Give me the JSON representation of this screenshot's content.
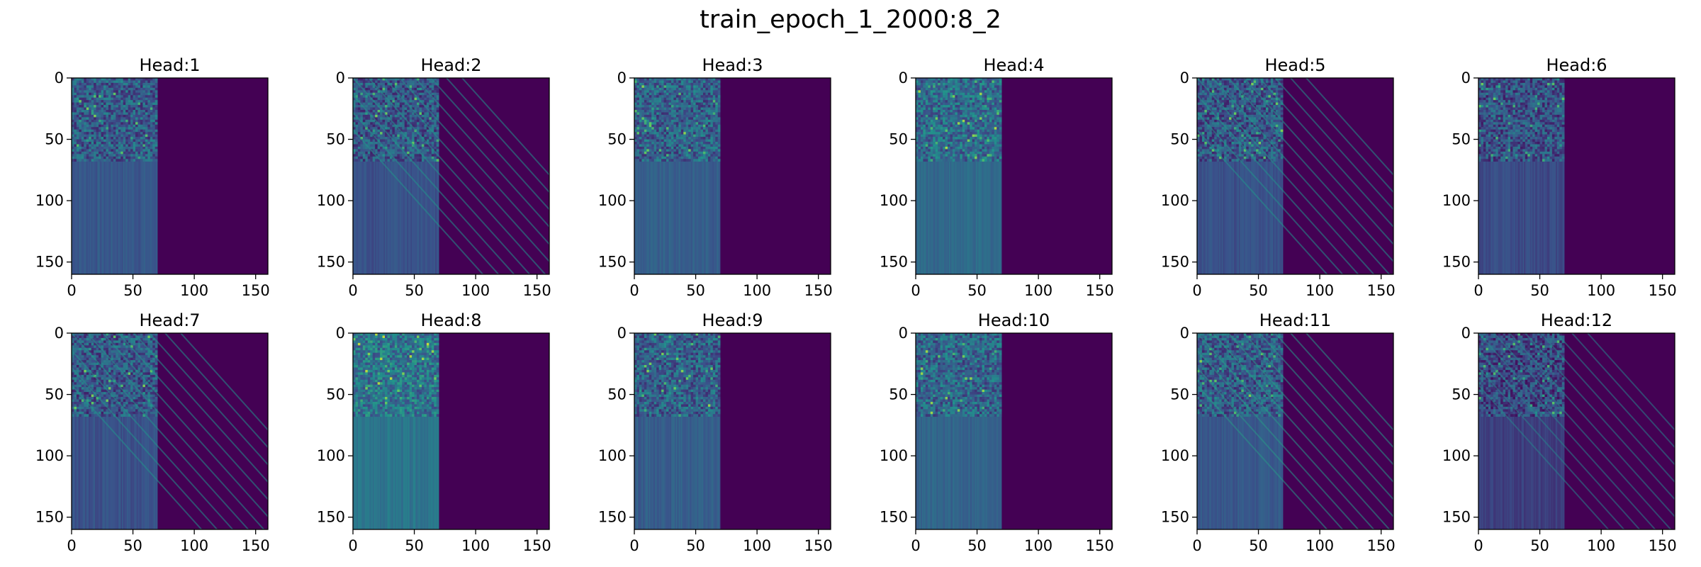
{
  "figure_title": "train_epoch_1_2000:8_2",
  "chart_data": [
    {
      "type": "heatmap",
      "title": "Head:1",
      "xlim": [
        0,
        160
      ],
      "ylim": [
        160,
        0
      ],
      "xticks": [
        0,
        50,
        100,
        150
      ],
      "yticks": [
        0,
        50,
        100,
        150
      ],
      "xticklabels": [
        "0",
        "50",
        "100",
        "150"
      ],
      "yticklabels": [
        "0",
        "50",
        "100",
        "150"
      ],
      "active_columns": [
        0,
        70
      ],
      "top_block_rows": [
        0,
        68
      ],
      "brightness": 0.35,
      "diagonal_stripes": false
    },
    {
      "type": "heatmap",
      "title": "Head:2",
      "xlim": [
        0,
        160
      ],
      "ylim": [
        160,
        0
      ],
      "xticks": [
        0,
        50,
        100,
        150
      ],
      "yticks": [
        0,
        50,
        100,
        150
      ],
      "xticklabels": [
        "0",
        "50",
        "100",
        "150"
      ],
      "yticklabels": [
        "0",
        "50",
        "100",
        "150"
      ],
      "active_columns": [
        0,
        70
      ],
      "top_block_rows": [
        0,
        68
      ],
      "brightness": 0.3,
      "diagonal_stripes": true
    },
    {
      "type": "heatmap",
      "title": "Head:3",
      "xlim": [
        0,
        160
      ],
      "ylim": [
        160,
        0
      ],
      "xticks": [
        0,
        50,
        100,
        150
      ],
      "yticks": [
        0,
        50,
        100,
        150
      ],
      "xticklabels": [
        "0",
        "50",
        "100",
        "150"
      ],
      "yticklabels": [
        "0",
        "50",
        "100",
        "150"
      ],
      "active_columns": [
        0,
        70
      ],
      "top_block_rows": [
        0,
        68
      ],
      "brightness": 0.4,
      "diagonal_stripes": false
    },
    {
      "type": "heatmap",
      "title": "Head:4",
      "xlim": [
        0,
        160
      ],
      "ylim": [
        160,
        0
      ],
      "xticks": [
        0,
        50,
        100,
        150
      ],
      "yticks": [
        0,
        50,
        100,
        150
      ],
      "xticklabels": [
        "0",
        "50",
        "100",
        "150"
      ],
      "yticklabels": [
        "0",
        "50",
        "100",
        "150"
      ],
      "active_columns": [
        0,
        70
      ],
      "top_block_rows": [
        0,
        68
      ],
      "brightness": 0.5,
      "diagonal_stripes": false
    },
    {
      "type": "heatmap",
      "title": "Head:5",
      "xlim": [
        0,
        160
      ],
      "ylim": [
        160,
        0
      ],
      "xticks": [
        0,
        50,
        100,
        150
      ],
      "yticks": [
        0,
        50,
        100,
        150
      ],
      "xticklabels": [
        "0",
        "50",
        "100",
        "150"
      ],
      "yticklabels": [
        "0",
        "50",
        "100",
        "150"
      ],
      "active_columns": [
        0,
        70
      ],
      "top_block_rows": [
        0,
        68
      ],
      "brightness": 0.3,
      "diagonal_stripes": true
    },
    {
      "type": "heatmap",
      "title": "Head:6",
      "xlim": [
        0,
        160
      ],
      "ylim": [
        160,
        0
      ],
      "xticks": [
        0,
        50,
        100,
        150
      ],
      "yticks": [
        0,
        50,
        100,
        150
      ],
      "xticklabels": [
        "0",
        "50",
        "100",
        "150"
      ],
      "yticklabels": [
        "0",
        "50",
        "100",
        "150"
      ],
      "active_columns": [
        0,
        70
      ],
      "top_block_rows": [
        0,
        68
      ],
      "brightness": 0.25,
      "diagonal_stripes": false
    },
    {
      "type": "heatmap",
      "title": "Head:7",
      "xlim": [
        0,
        160
      ],
      "ylim": [
        160,
        0
      ],
      "xticks": [
        0,
        50,
        100,
        150
      ],
      "yticks": [
        0,
        50,
        100,
        150
      ],
      "xticklabels": [
        "0",
        "50",
        "100",
        "150"
      ],
      "yticklabels": [
        "0",
        "50",
        "100",
        "150"
      ],
      "active_columns": [
        0,
        70
      ],
      "top_block_rows": [
        0,
        68
      ],
      "brightness": 0.3,
      "diagonal_stripes": true
    },
    {
      "type": "heatmap",
      "title": "Head:8",
      "xlim": [
        0,
        160
      ],
      "ylim": [
        160,
        0
      ],
      "xticks": [
        0,
        50,
        100,
        150
      ],
      "yticks": [
        0,
        50,
        100,
        150
      ],
      "xticklabels": [
        "0",
        "50",
        "100",
        "150"
      ],
      "yticklabels": [
        "0",
        "50",
        "100",
        "150"
      ],
      "active_columns": [
        0,
        70
      ],
      "top_block_rows": [
        0,
        68
      ],
      "brightness": 0.6,
      "diagonal_stripes": false
    },
    {
      "type": "heatmap",
      "title": "Head:9",
      "xlim": [
        0,
        160
      ],
      "ylim": [
        160,
        0
      ],
      "xticks": [
        0,
        50,
        100,
        150
      ],
      "yticks": [
        0,
        50,
        100,
        150
      ],
      "xticklabels": [
        "0",
        "50",
        "100",
        "150"
      ],
      "yticklabels": [
        "0",
        "50",
        "100",
        "150"
      ],
      "active_columns": [
        0,
        70
      ],
      "top_block_rows": [
        0,
        68
      ],
      "brightness": 0.4,
      "diagonal_stripes": false
    },
    {
      "type": "heatmap",
      "title": "Head:10",
      "xlim": [
        0,
        160
      ],
      "ylim": [
        160,
        0
      ],
      "xticks": [
        0,
        50,
        100,
        150
      ],
      "yticks": [
        0,
        50,
        100,
        150
      ],
      "xticklabels": [
        "0",
        "50",
        "100",
        "150"
      ],
      "yticklabels": [
        "0",
        "50",
        "100",
        "150"
      ],
      "active_columns": [
        0,
        70
      ],
      "top_block_rows": [
        0,
        68
      ],
      "brightness": 0.45,
      "diagonal_stripes": false
    },
    {
      "type": "heatmap",
      "title": "Head:11",
      "xlim": [
        0,
        160
      ],
      "ylim": [
        160,
        0
      ],
      "xticks": [
        0,
        50,
        100,
        150
      ],
      "yticks": [
        0,
        50,
        100,
        150
      ],
      "xticklabels": [
        "0",
        "50",
        "100",
        "150"
      ],
      "yticklabels": [
        "0",
        "50",
        "100",
        "150"
      ],
      "active_columns": [
        0,
        70
      ],
      "top_block_rows": [
        0,
        68
      ],
      "brightness": 0.35,
      "diagonal_stripes": true
    },
    {
      "type": "heatmap",
      "title": "Head:12",
      "xlim": [
        0,
        160
      ],
      "ylim": [
        160,
        0
      ],
      "xticks": [
        0,
        50,
        100,
        150
      ],
      "yticks": [
        0,
        50,
        100,
        150
      ],
      "xticklabels": [
        "0",
        "50",
        "100",
        "150"
      ],
      "yticklabels": [
        "0",
        "50",
        "100",
        "150"
      ],
      "active_columns": [
        0,
        70
      ],
      "top_block_rows": [
        0,
        68
      ],
      "brightness": 0.15,
      "diagonal_stripes": true
    }
  ],
  "colors": {
    "cmap": "viridis",
    "background_cell": "#440154",
    "low": "#3b528b",
    "mid": "#21918c",
    "high": "#5ec962"
  }
}
